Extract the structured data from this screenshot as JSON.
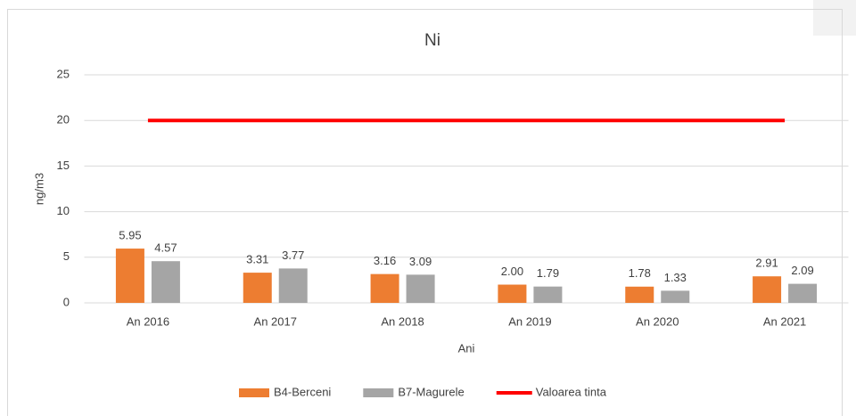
{
  "chart_data": {
    "type": "bar",
    "title": "Ni",
    "x_label": "Ani",
    "y_label": "ng/m3",
    "categories": [
      "An 2016",
      "An 2017",
      "An 2018",
      "An 2019",
      "An 2020",
      "An 2021"
    ],
    "series": [
      {
        "name": "B4-Berceni",
        "color": "#ed7d31",
        "values": [
          5.95,
          3.31,
          3.16,
          2.0,
          1.78,
          2.91
        ],
        "value_labels": [
          "5.95",
          "3.31",
          "3.16",
          "2.00",
          "1.78",
          "2.91"
        ]
      },
      {
        "name": "B7-Magurele",
        "color": "#a5a5a5",
        "values": [
          4.57,
          3.77,
          3.09,
          1.79,
          1.33,
          2.09
        ],
        "value_labels": [
          "4.57",
          "3.77",
          "3.09",
          "1.79",
          "1.33",
          "2.09"
        ]
      },
      {
        "name": "Valoarea tinta",
        "type": "line",
        "color": "#ff0000",
        "values": [
          20,
          20,
          20,
          20,
          20,
          20
        ]
      }
    ],
    "ylim": [
      0,
      25
    ],
    "yticks": [
      0,
      5,
      10,
      15,
      20,
      25
    ],
    "grid": true,
    "legend": "bottom"
  }
}
